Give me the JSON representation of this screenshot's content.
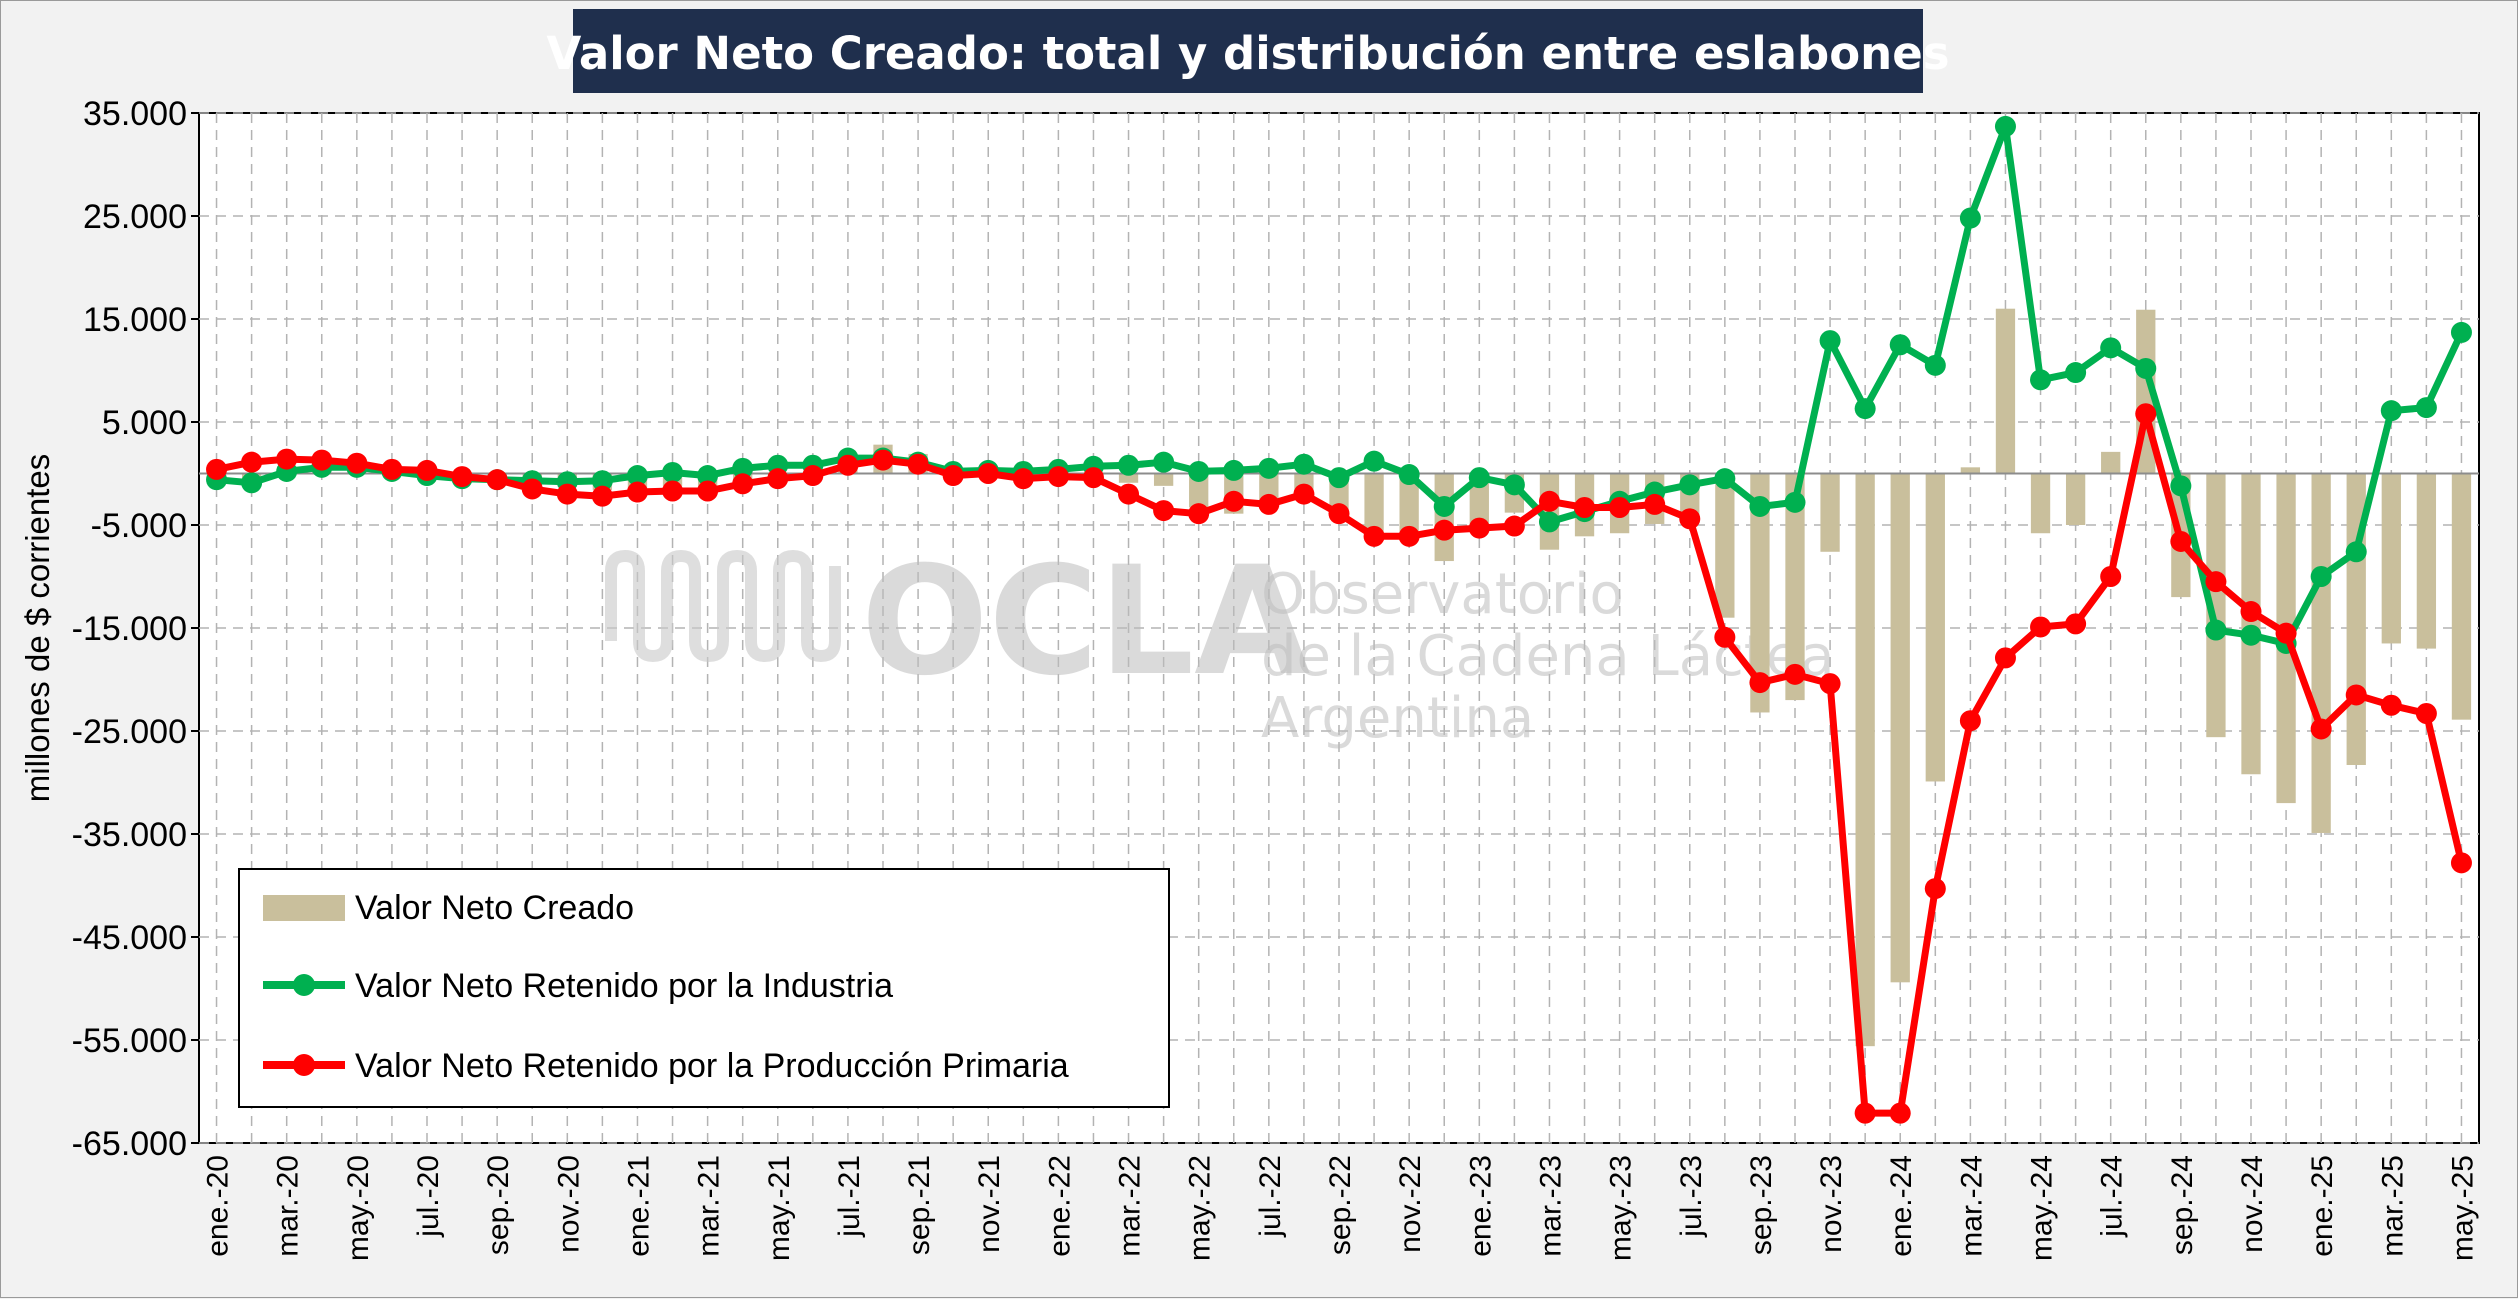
{
  "chart_data": {
    "type": "bar+line",
    "title": "Valor Neto Creado: total y distribución entre eslabones",
    "ylabel": "millones de $ corrientes",
    "xlabel": "",
    "ylim": [
      -65000,
      35000
    ],
    "yticks": [
      35000,
      25000,
      15000,
      5000,
      -5000,
      -15000,
      -25000,
      -35000,
      -45000,
      -55000,
      -65000
    ],
    "ytick_labels": [
      "35.000",
      "25.000",
      "15.000",
      "5.000",
      "-5.000",
      "-15.000",
      "-25.000",
      "-35.000",
      "-45.000",
      "-55.000",
      "-65.000"
    ],
    "grid": true,
    "legend_position": "bottom-left",
    "categories": [
      "ene.-20",
      "feb.-20",
      "mar.-20",
      "abr.-20",
      "may.-20",
      "jun.-20",
      "jul.-20",
      "ago.-20",
      "sep.-20",
      "oct.-20",
      "nov.-20",
      "dic.-20",
      "ene.-21",
      "feb.-21",
      "mar.-21",
      "abr.-21",
      "may.-21",
      "jun.-21",
      "jul.-21",
      "ago.-21",
      "sep.-21",
      "oct.-21",
      "nov.-21",
      "dic.-21",
      "ene.-22",
      "feb.-22",
      "mar.-22",
      "abr.-22",
      "may.-22",
      "jun.-22",
      "jul.-22",
      "ago.-22",
      "sep.-22",
      "oct.-22",
      "nov.-22",
      "dic.-22",
      "ene.-23",
      "feb.-23",
      "mar.-23",
      "abr.-23",
      "may.-23",
      "jun.-23",
      "jul.-23",
      "ago.-23",
      "sep.-23",
      "oct.-23",
      "nov.-23",
      "dic.-23",
      "ene.-24",
      "feb.-24",
      "mar.-24",
      "abr.-24",
      "may.-24",
      "jun.-24",
      "jul.-24",
      "ago.-24",
      "sep.-24",
      "oct.-24",
      "nov.-24",
      "dic.-24",
      "ene.-25",
      "feb.-25",
      "mar.-25",
      "abr.-25",
      "may.-25"
    ],
    "tick_labels_shown": [
      "ene.-20",
      "mar.-20",
      "may.-20",
      "jul.-20",
      "sep.-20",
      "nov.-20",
      "ene.-21",
      "mar.-21",
      "may.-21",
      "jul.-21",
      "sep.-21",
      "nov.-21",
      "ene.-22",
      "mar.-22",
      "may.-22",
      "jul.-22",
      "sep.-22",
      "nov.-22",
      "ene.-23",
      "mar.-23",
      "may.-23",
      "jul.-23",
      "sep.-23",
      "nov.-23",
      "ene.-24",
      "mar.-24",
      "may.-24",
      "jul.-24",
      "sep.-24",
      "nov.-24",
      "ene.-25",
      "mar.-25",
      "may.-25"
    ],
    "series": [
      {
        "name": "Valor Neto Creado",
        "type": "bar",
        "color": "#c9bf9c",
        "values": [
          -300,
          -700,
          700,
          1100,
          800,
          400,
          100,
          -300,
          -600,
          -1100,
          -1300,
          -1600,
          -1400,
          -1200,
          -1400,
          -900,
          -300,
          100,
          1500,
          2800,
          1900,
          -100,
          -300,
          -300,
          -200,
          -100,
          -900,
          -1200,
          -3300,
          -3900,
          -2700,
          -2600,
          -4000,
          -5800,
          -6400,
          -8500,
          -5000,
          -3800,
          -7400,
          -6100,
          -5800,
          -4900,
          -4600,
          -14000,
          -23200,
          -22000,
          -7600,
          -55600,
          -49400,
          -29900,
          600,
          16000,
          -5800,
          -5000,
          2100,
          15900,
          -12000,
          -25600,
          -29200,
          -32000,
          -34900,
          -28300,
          -16500,
          -17000,
          -23900
        ]
      },
      {
        "name": "Valor Neto Retenido por la Industria",
        "type": "line",
        "color": "#00b050",
        "values": [
          -600,
          -900,
          200,
          600,
          600,
          200,
          -200,
          -500,
          -600,
          -700,
          -800,
          -700,
          -200,
          100,
          -200,
          500,
          800,
          800,
          1500,
          1500,
          1100,
          200,
          300,
          200,
          400,
          700,
          800,
          1100,
          200,
          300,
          500,
          900,
          -400,
          1200,
          -100,
          -3200,
          -400,
          -1100,
          -4700,
          -3700,
          -2700,
          -1800,
          -1100,
          -500,
          -3200,
          -2800,
          12900,
          6300,
          12500,
          10500,
          24800,
          33700,
          9100,
          9800,
          12200,
          10200,
          -1200,
          -15200,
          -15700,
          -16500,
          -10000,
          -7600,
          6100,
          6400,
          13700
        ]
      },
      {
        "name": "Valor Neto Retenido por la Producción Primaria",
        "type": "line",
        "color": "#ff0000",
        "values": [
          400,
          1100,
          1400,
          1300,
          1000,
          400,
          300,
          -300,
          -600,
          -1500,
          -2000,
          -2200,
          -1800,
          -1700,
          -1700,
          -1000,
          -500,
          -200,
          800,
          1300,
          900,
          -200,
          0,
          -500,
          -300,
          -400,
          -2000,
          -3600,
          -3900,
          -2700,
          -3000,
          -2000,
          -3900,
          -6100,
          -6100,
          -5500,
          -5300,
          -5100,
          -2700,
          -3300,
          -3300,
          -3000,
          -4400,
          -15900,
          -20300,
          -19500,
          -20400,
          -62100,
          -62100,
          -40300,
          -24000,
          -17900,
          -14900,
          -14600,
          -10000,
          5800,
          -6600,
          -10500,
          -13400,
          -15500,
          -24800,
          -21500,
          -22500,
          -23300,
          -37800
        ]
      }
    ]
  },
  "legend": {
    "items": [
      {
        "label": "Valor Neto Creado",
        "color": "#c9bf9c"
      },
      {
        "label": "Valor Neto Retenido por la Industria",
        "color": "#00b050"
      },
      {
        "label": "Valor Neto Retenido por la Producción Primaria",
        "color": "#ff0000"
      }
    ]
  },
  "watermark": {
    "logo": "OCLA",
    "line1": "Observatorio",
    "line2": "de la Cadena Láctea",
    "line3": "Argentina"
  }
}
